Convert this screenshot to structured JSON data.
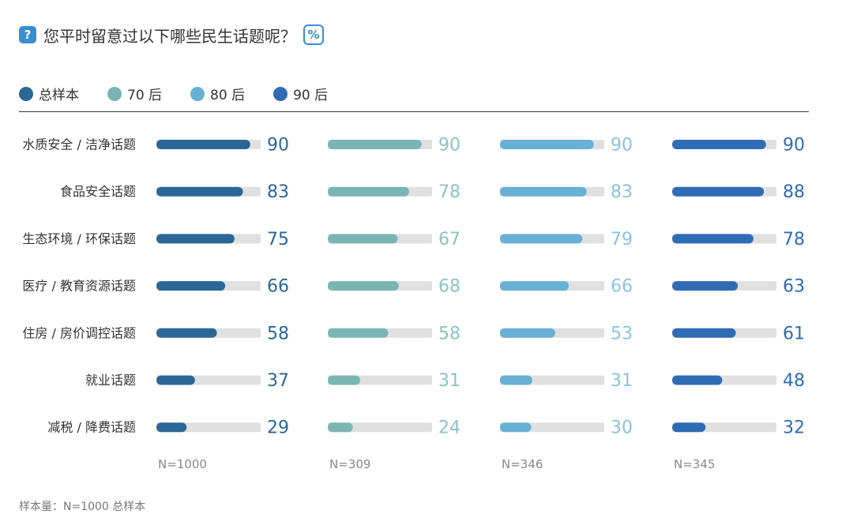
{
  "title": "您平时留意过以下哪些民生话题呢？",
  "title_icon": "question-icon",
  "unit_icon": "percent-icon",
  "unit_symbol": "%",
  "question_mark": "?",
  "legend": [
    {
      "label": "总样本",
      "color": "#2b6796"
    },
    {
      "label": "70 后",
      "color": "#7ab5b3"
    },
    {
      "label": "80 后",
      "color": "#68b0d4"
    },
    {
      "label": "90 后",
      "color": "#2f6cb5"
    }
  ],
  "chart_data": {
    "type": "bar",
    "categories": [
      "水质安全 / 洁净话题",
      "食品安全话题",
      "生态环境 / 环保话题",
      "医疗 / 教育资源话题",
      "住房 / 房价调控话题",
      "就业话题",
      "减税 / 降费话题"
    ],
    "series": [
      {
        "name": "总样本",
        "n": "N=1000",
        "color": "#2b6796",
        "values": [
          90,
          83,
          75,
          66,
          58,
          37,
          29
        ]
      },
      {
        "name": "70 后",
        "n": "N=309",
        "color": "#7ab5b3",
        "values": [
          90,
          78,
          67,
          68,
          58,
          31,
          24
        ]
      },
      {
        "name": "80 后",
        "n": "N=346",
        "color": "#68b0d4",
        "values": [
          90,
          83,
          79,
          66,
          53,
          31,
          30
        ]
      },
      {
        "name": "90 后",
        "n": "N=345",
        "color": "#2f6cb5",
        "values": [
          90,
          88,
          78,
          63,
          61,
          48,
          32
        ]
      }
    ],
    "xlim": [
      0,
      100
    ],
    "track_color": "#e0e0e0",
    "value_colors": [
      "#2b6796",
      "#8fc2c0",
      "#8cc3de",
      "#2f6cb5"
    ]
  },
  "footnote": "样本量：N=1000 总样本"
}
